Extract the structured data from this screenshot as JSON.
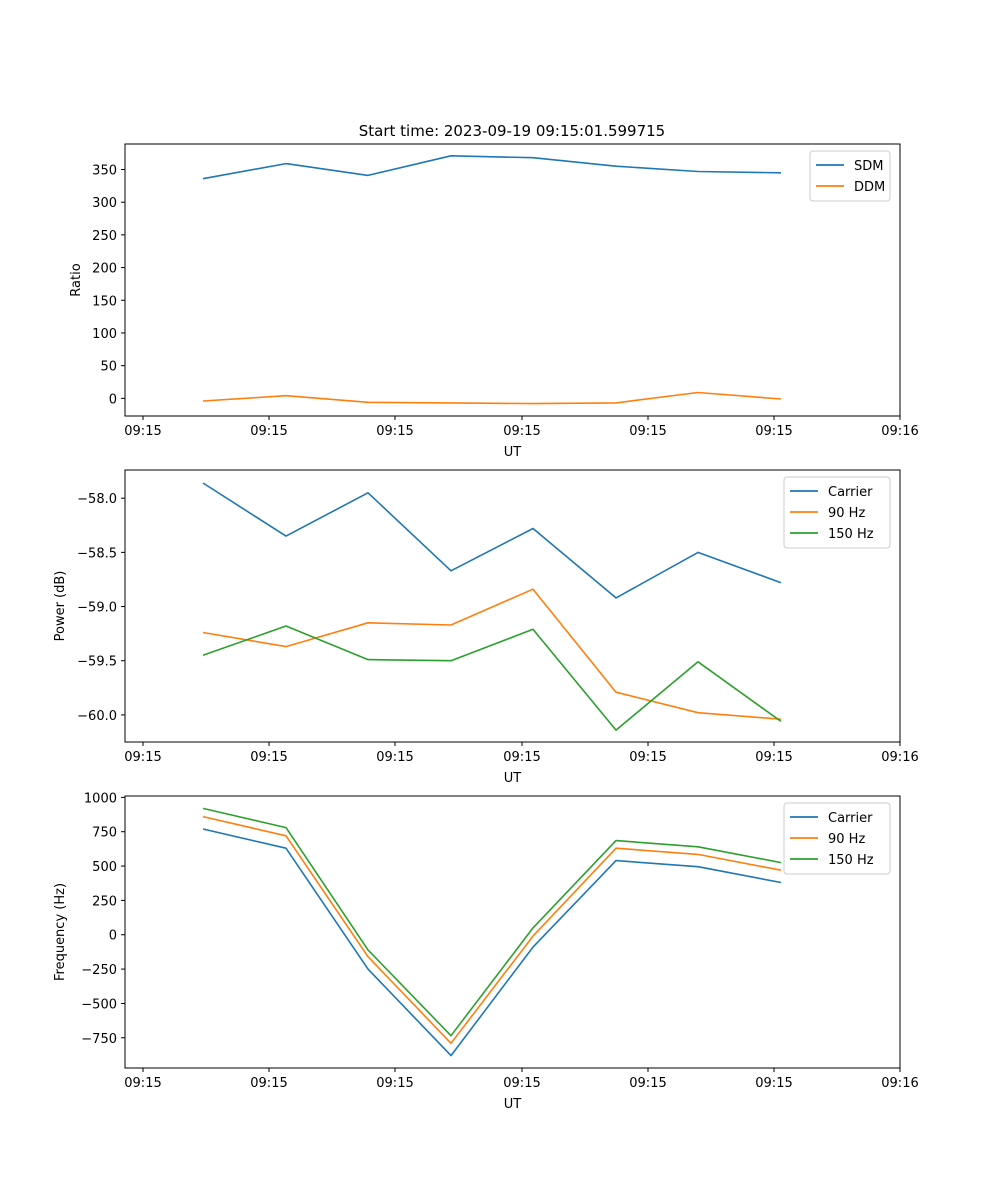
{
  "figure": {
    "title": "Start time: 2023-09-19 09:15:01.599715"
  },
  "chart_data": [
    {
      "type": "line",
      "xlabel": "UT",
      "ylabel": "Ratio",
      "x_tick_labels": [
        "09:15",
        "09:15",
        "09:15",
        "09:15",
        "09:15",
        "09:15",
        "09:16"
      ],
      "y_ticks": [
        0,
        50,
        100,
        150,
        200,
        250,
        300,
        350
      ],
      "y_tick_labels": [
        "0",
        "50",
        "100",
        "150",
        "200",
        "250",
        "300",
        "350"
      ],
      "ylim": [
        -27,
        389
      ],
      "legend": "top-right",
      "series": [
        {
          "name": "SDM",
          "color": "#1f77b4",
          "values": [
            336,
            359,
            341,
            371,
            368,
            355,
            347,
            345
          ]
        },
        {
          "name": "DDM",
          "color": "#ff7f0e",
          "values": [
            -4,
            4,
            -6,
            -7,
            -8,
            -7,
            9,
            -1
          ]
        }
      ]
    },
    {
      "type": "line",
      "xlabel": "UT",
      "ylabel": "Power (dB)",
      "x_tick_labels": [
        "09:15",
        "09:15",
        "09:15",
        "09:15",
        "09:15",
        "09:15",
        "09:16"
      ],
      "y_ticks": [
        -60.0,
        -59.5,
        -59.0,
        -58.5,
        -58.0
      ],
      "y_tick_labels": [
        "−60.0",
        "−59.5",
        "−59.0",
        "−58.5",
        "−58.0"
      ],
      "ylim": [
        -60.25,
        -57.74
      ],
      "legend": "top-right",
      "series": [
        {
          "name": "Carrier",
          "color": "#1f77b4",
          "values": [
            -57.86,
            -58.35,
            -57.95,
            -58.67,
            -58.28,
            -58.92,
            -58.5,
            -58.78
          ]
        },
        {
          "name": "90 Hz",
          "color": "#ff7f0e",
          "values": [
            -59.24,
            -59.37,
            -59.15,
            -59.17,
            -58.84,
            -59.79,
            -59.98,
            -60.04
          ]
        },
        {
          "name": "150 Hz",
          "color": "#2ca02c",
          "values": [
            -59.45,
            -59.18,
            -59.49,
            -59.5,
            -59.21,
            -60.14,
            -59.51,
            -60.06
          ]
        }
      ]
    },
    {
      "type": "line",
      "xlabel": "UT",
      "ylabel": "Frequency (Hz)",
      "x_tick_labels": [
        "09:15",
        "09:15",
        "09:15",
        "09:15",
        "09:15",
        "09:15",
        "09:16"
      ],
      "y_ticks": [
        -750,
        -500,
        -250,
        0,
        250,
        500,
        750,
        1000
      ],
      "y_tick_labels": [
        "−750",
        "−500",
        "−250",
        "0",
        "250",
        "500",
        "750",
        "1000"
      ],
      "ylim": [
        -970,
        1010
      ],
      "legend": "top-right",
      "series": [
        {
          "name": "Carrier",
          "color": "#1f77b4",
          "values": [
            770,
            630,
            -250,
            -880,
            -90,
            540,
            495,
            380
          ]
        },
        {
          "name": "90 Hz",
          "color": "#ff7f0e",
          "values": [
            860,
            720,
            -160,
            -790,
            -10,
            630,
            585,
            470
          ]
        },
        {
          "name": "150 Hz",
          "color": "#2ca02c",
          "values": [
            920,
            780,
            -110,
            -735,
            50,
            685,
            640,
            525
          ]
        }
      ]
    }
  ]
}
